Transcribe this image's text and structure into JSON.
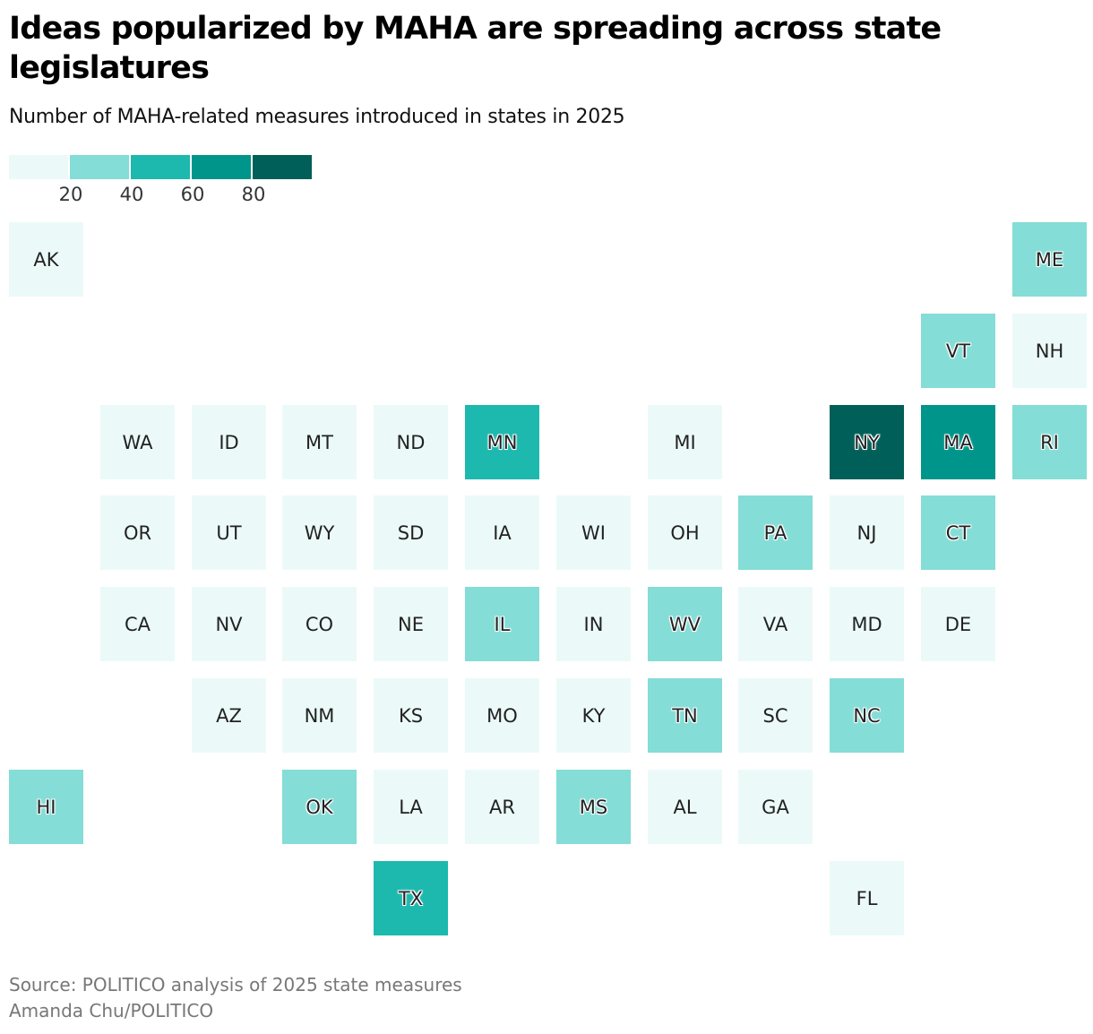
{
  "title": "Ideas popularized by MAHA are spreading across state legislatures",
  "subtitle": "Number of MAHA-related measures introduced in states in 2025",
  "legend": {
    "bins": [
      {
        "color": "#ebfaf8"
      },
      {
        "color": "#84ddd6"
      },
      {
        "color": "#1db8ae"
      },
      {
        "color": "#00958a"
      },
      {
        "color": "#005f58"
      }
    ],
    "ticks": [
      "20",
      "40",
      "60",
      "80"
    ]
  },
  "map_data": {
    "type": "tile-grid-choropleth",
    "legend_thresholds": [
      20,
      40,
      60,
      80
    ],
    "states": [
      {
        "abbr": "AK",
        "bin": 0,
        "row": 0,
        "col": 0
      },
      {
        "abbr": "ME",
        "bin": 1,
        "row": 0,
        "col": 11
      },
      {
        "abbr": "VT",
        "bin": 1,
        "row": 1,
        "col": 10
      },
      {
        "abbr": "NH",
        "bin": 0,
        "row": 1,
        "col": 11
      },
      {
        "abbr": "WA",
        "bin": 0,
        "row": 2,
        "col": 1
      },
      {
        "abbr": "ID",
        "bin": 0,
        "row": 2,
        "col": 2
      },
      {
        "abbr": "MT",
        "bin": 0,
        "row": 2,
        "col": 3
      },
      {
        "abbr": "ND",
        "bin": 0,
        "row": 2,
        "col": 4
      },
      {
        "abbr": "MN",
        "bin": 2,
        "row": 2,
        "col": 5
      },
      {
        "abbr": "MI",
        "bin": 0,
        "row": 2,
        "col": 7
      },
      {
        "abbr": "NY",
        "bin": 4,
        "row": 2,
        "col": 9
      },
      {
        "abbr": "MA",
        "bin": 3,
        "row": 2,
        "col": 10
      },
      {
        "abbr": "RI",
        "bin": 1,
        "row": 2,
        "col": 11
      },
      {
        "abbr": "OR",
        "bin": 0,
        "row": 3,
        "col": 1
      },
      {
        "abbr": "UT",
        "bin": 0,
        "row": 3,
        "col": 2
      },
      {
        "abbr": "WY",
        "bin": 0,
        "row": 3,
        "col": 3
      },
      {
        "abbr": "SD",
        "bin": 0,
        "row": 3,
        "col": 4
      },
      {
        "abbr": "IA",
        "bin": 0,
        "row": 3,
        "col": 5
      },
      {
        "abbr": "WI",
        "bin": 0,
        "row": 3,
        "col": 6
      },
      {
        "abbr": "OH",
        "bin": 0,
        "row": 3,
        "col": 7
      },
      {
        "abbr": "PA",
        "bin": 1,
        "row": 3,
        "col": 8
      },
      {
        "abbr": "NJ",
        "bin": 0,
        "row": 3,
        "col": 9
      },
      {
        "abbr": "CT",
        "bin": 1,
        "row": 3,
        "col": 10
      },
      {
        "abbr": "CA",
        "bin": 0,
        "row": 4,
        "col": 1
      },
      {
        "abbr": "NV",
        "bin": 0,
        "row": 4,
        "col": 2
      },
      {
        "abbr": "CO",
        "bin": 0,
        "row": 4,
        "col": 3
      },
      {
        "abbr": "NE",
        "bin": 0,
        "row": 4,
        "col": 4
      },
      {
        "abbr": "IL",
        "bin": 1,
        "row": 4,
        "col": 5
      },
      {
        "abbr": "IN",
        "bin": 0,
        "row": 4,
        "col": 6
      },
      {
        "abbr": "WV",
        "bin": 1,
        "row": 4,
        "col": 7
      },
      {
        "abbr": "VA",
        "bin": 0,
        "row": 4,
        "col": 8
      },
      {
        "abbr": "MD",
        "bin": 0,
        "row": 4,
        "col": 9
      },
      {
        "abbr": "DE",
        "bin": 0,
        "row": 4,
        "col": 10
      },
      {
        "abbr": "AZ",
        "bin": 0,
        "row": 5,
        "col": 2
      },
      {
        "abbr": "NM",
        "bin": 0,
        "row": 5,
        "col": 3
      },
      {
        "abbr": "KS",
        "bin": 0,
        "row": 5,
        "col": 4
      },
      {
        "abbr": "MO",
        "bin": 0,
        "row": 5,
        "col": 5
      },
      {
        "abbr": "KY",
        "bin": 0,
        "row": 5,
        "col": 6
      },
      {
        "abbr": "TN",
        "bin": 1,
        "row": 5,
        "col": 7
      },
      {
        "abbr": "SC",
        "bin": 0,
        "row": 5,
        "col": 8
      },
      {
        "abbr": "NC",
        "bin": 1,
        "row": 5,
        "col": 9
      },
      {
        "abbr": "HI",
        "bin": 1,
        "row": 6,
        "col": 0
      },
      {
        "abbr": "OK",
        "bin": 1,
        "row": 6,
        "col": 3
      },
      {
        "abbr": "LA",
        "bin": 0,
        "row": 6,
        "col": 4
      },
      {
        "abbr": "AR",
        "bin": 0,
        "row": 6,
        "col": 5
      },
      {
        "abbr": "MS",
        "bin": 1,
        "row": 6,
        "col": 6
      },
      {
        "abbr": "AL",
        "bin": 0,
        "row": 6,
        "col": 7
      },
      {
        "abbr": "GA",
        "bin": 0,
        "row": 6,
        "col": 8
      },
      {
        "abbr": "TX",
        "bin": 2,
        "row": 7,
        "col": 4
      },
      {
        "abbr": "FL",
        "bin": 0,
        "row": 7,
        "col": 9
      }
    ]
  },
  "source": "Source: POLITICO analysis of 2025 state measures",
  "credit": "Amanda Chu/POLITICO"
}
